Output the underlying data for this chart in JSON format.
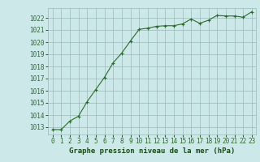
{
  "x": [
    0,
    1,
    2,
    3,
    4,
    5,
    6,
    7,
    8,
    9,
    10,
    11,
    12,
    13,
    14,
    15,
    16,
    17,
    18,
    19,
    20,
    21,
    22,
    23
  ],
  "y": [
    1012.8,
    1012.8,
    1013.5,
    1013.9,
    1015.1,
    1016.1,
    1017.1,
    1018.3,
    1019.1,
    1020.1,
    1021.05,
    1021.15,
    1021.3,
    1021.35,
    1021.35,
    1021.5,
    1021.9,
    1021.55,
    1021.8,
    1022.2,
    1022.15,
    1022.15,
    1022.05,
    1022.5
  ],
  "line_color": "#2d6a2d",
  "marker": "+",
  "marker_size": 3.5,
  "bg_color": "#cce8e8",
  "grid_color": "#99bbbb",
  "xlabel": "Graphe pression niveau de la mer (hPa)",
  "xlabel_color": "#1a4a1a",
  "xlabel_fontsize": 6.5,
  "ylabel_ticks": [
    1013,
    1014,
    1015,
    1016,
    1017,
    1018,
    1019,
    1020,
    1021,
    1022
  ],
  "ylim": [
    1012.4,
    1022.8
  ],
  "xlim": [
    -0.5,
    23.5
  ],
  "tick_color": "#2d6a2d",
  "tick_fontsize": 5.5,
  "xtick_labels": [
    "0",
    "1",
    "2",
    "3",
    "4",
    "5",
    "6",
    "7",
    "8",
    "9",
    "10",
    "11",
    "12",
    "13",
    "14",
    "15",
    "16",
    "17",
    "18",
    "19",
    "20",
    "21",
    "22",
    "23"
  ]
}
